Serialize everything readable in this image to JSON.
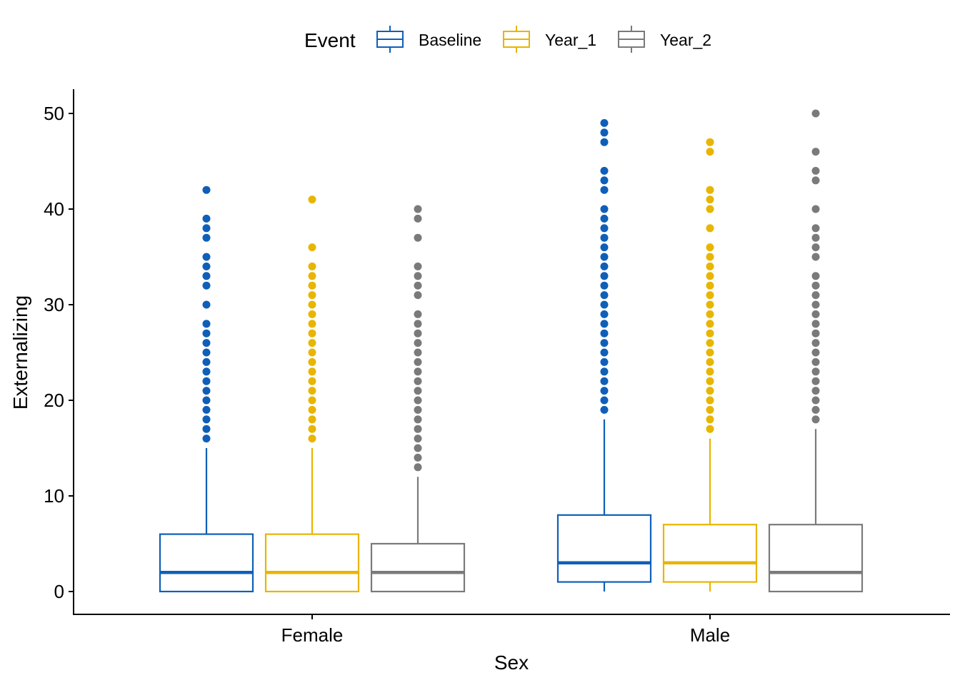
{
  "chart_data": {
    "type": "boxplot",
    "xlabel": "Sex",
    "ylabel": "Externalizing",
    "ylim": [
      -2.5,
      52.5
    ],
    "yticks": [
      0,
      10,
      20,
      30,
      40,
      50
    ],
    "categories": [
      "Female",
      "Male"
    ],
    "grid": false,
    "legend": {
      "title": "Event",
      "placement": "top",
      "entries": [
        "Baseline",
        "Year_1",
        "Year_2"
      ]
    },
    "series": [
      {
        "name": "Baseline",
        "color": "#0F5FB8",
        "boxes": [
          {
            "category": "Female",
            "whisker_low": 0,
            "q1": 0,
            "median": 2,
            "q3": 6,
            "whisker_high": 15,
            "outliers": [
              16,
              17,
              18,
              19,
              20,
              21,
              22,
              23,
              24,
              25,
              26,
              27,
              28,
              30,
              32,
              33,
              34,
              35,
              37,
              38,
              39,
              42
            ]
          },
          {
            "category": "Male",
            "whisker_low": 0,
            "q1": 1,
            "median": 3,
            "q3": 8,
            "whisker_high": 18,
            "outliers": [
              19,
              20,
              21,
              22,
              23,
              24,
              25,
              26,
              27,
              28,
              29,
              30,
              31,
              32,
              33,
              34,
              35,
              36,
              37,
              38,
              39,
              40,
              42,
              43,
              44,
              47,
              48,
              49
            ]
          }
        ]
      },
      {
        "name": "Year_1",
        "color": "#E8B500",
        "boxes": [
          {
            "category": "Female",
            "whisker_low": 0,
            "q1": 0,
            "median": 2,
            "q3": 6,
            "whisker_high": 15,
            "outliers": [
              16,
              17,
              18,
              19,
              20,
              21,
              22,
              23,
              24,
              25,
              26,
              27,
              28,
              29,
              30,
              31,
              32,
              33,
              34,
              36,
              41
            ]
          },
          {
            "category": "Male",
            "whisker_low": 0,
            "q1": 1,
            "median": 3,
            "q3": 7,
            "whisker_high": 16,
            "outliers": [
              17,
              18,
              19,
              20,
              21,
              22,
              23,
              24,
              25,
              26,
              27,
              28,
              29,
              30,
              31,
              32,
              33,
              34,
              35,
              36,
              38,
              40,
              41,
              42,
              46,
              47
            ]
          }
        ]
      },
      {
        "name": "Year_2",
        "color": "#7A7A7A",
        "boxes": [
          {
            "category": "Female",
            "whisker_low": 0,
            "q1": 0,
            "median": 2,
            "q3": 5,
            "whisker_high": 12,
            "outliers": [
              13,
              14,
              15,
              16,
              17,
              18,
              19,
              20,
              21,
              22,
              23,
              24,
              25,
              26,
              27,
              28,
              29,
              31,
              32,
              33,
              34,
              37,
              39,
              40
            ]
          },
          {
            "category": "Male",
            "whisker_low": 0,
            "q1": 0,
            "median": 2,
            "q3": 7,
            "whisker_high": 17,
            "outliers": [
              18,
              19,
              20,
              21,
              22,
              23,
              24,
              25,
              26,
              27,
              28,
              29,
              30,
              31,
              32,
              33,
              35,
              36,
              37,
              38,
              40,
              43,
              44,
              46,
              50
            ]
          }
        ]
      }
    ]
  }
}
